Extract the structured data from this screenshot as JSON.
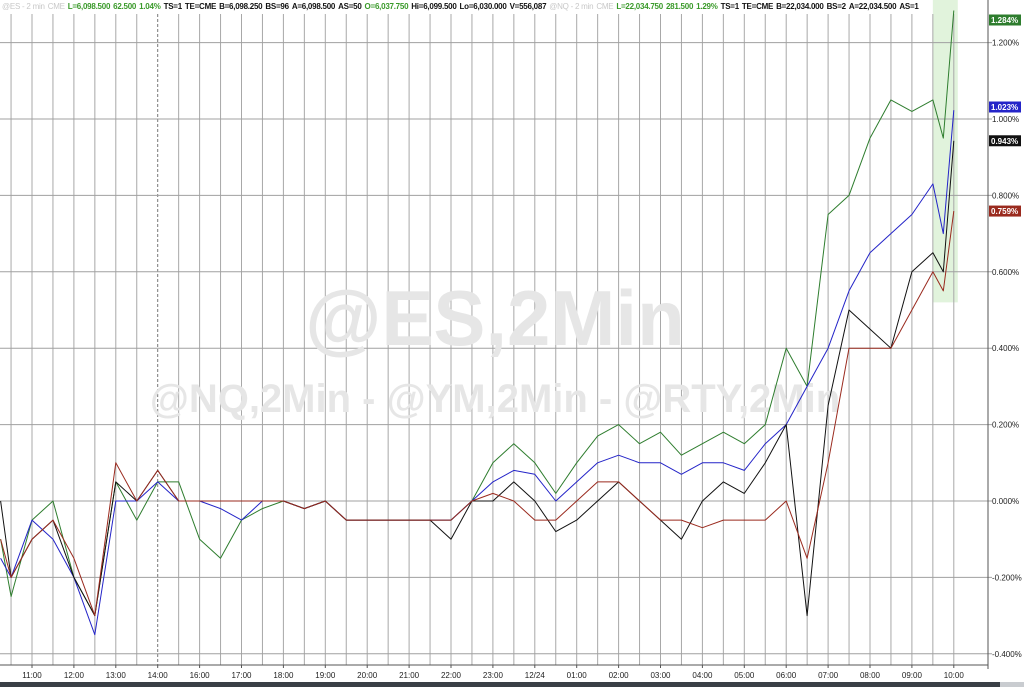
{
  "header": {
    "es_symbol": "@ES - 2 min",
    "es_exchange": "CME",
    "es_last": "L=6,098.500",
    "es_change": "62.500",
    "es_pct": "1.04%",
    "es_ts": "TS=1",
    "es_te": "TE=CME",
    "es_bid": "B=6,098.250",
    "es_bs": "BS=96",
    "es_ask": "A=6,098.500",
    "es_as": "AS=50",
    "es_open": "O=6,037.750",
    "es_high": "Hi=6,099.500",
    "es_low": "Lo=6,030.000",
    "es_vol": "V=556,087",
    "nq_symbol": "@NQ - 2 min",
    "nq_exchange": "CME",
    "nq_last": "L=22,034.750",
    "nq_change": "281.500",
    "nq_pct": "1.29%",
    "nq_ts": "TS=1",
    "nq_te": "TE=CME",
    "nq_bid": "B=22,034.000",
    "nq_bs": "BS=2",
    "nq_ask": "A=22,034.500",
    "nq_as": "AS=1"
  },
  "watermark": {
    "main": "@ES,2Min",
    "sub": "@NQ,2Min - @YM,2Min - @RTY,2Min"
  },
  "chart_data": {
    "type": "line",
    "ylim": [
      -0.42,
      1.32
    ],
    "yticks": [
      -0.4,
      -0.2,
      0.0,
      0.2,
      0.4,
      0.6,
      0.8,
      1.0,
      1.2
    ],
    "ytick_labels": [
      "-0.400%",
      "-0.200%",
      "0.000%",
      "0.200%",
      "0.400%",
      "0.600%",
      "0.800%",
      "1.000%",
      "1.200%"
    ],
    "xtick_labels": [
      "11:00",
      "12:00",
      "13:00",
      "14:00",
      "16:00",
      "17:00",
      "18:00",
      "19:00",
      "20:00",
      "21:00",
      "22:00",
      "23:00",
      "12/24",
      "01:00",
      "02:00",
      "03:00",
      "04:00",
      "05:00",
      "06:00",
      "07:00",
      "08:00",
      "09:00",
      "10:00"
    ],
    "session_break": "14:00",
    "grid": true,
    "highlight_band": {
      "from": "09:30",
      "to": "10:00",
      "ymin": 0.52,
      "color": "#d9f0d3"
    },
    "x": [
      "10:15",
      "10:30",
      "11:00",
      "11:30",
      "12:00",
      "12:30",
      "13:00",
      "13:30",
      "14:00",
      "14:30",
      "16:00",
      "16:30",
      "17:00",
      "17:30",
      "18:00",
      "18:30",
      "19:00",
      "19:30",
      "20:00",
      "20:30",
      "21:00",
      "21:30",
      "22:00",
      "22:30",
      "23:00",
      "23:30",
      "00:00",
      "00:30",
      "01:00",
      "01:30",
      "02:00",
      "02:30",
      "03:00",
      "03:30",
      "04:00",
      "04:30",
      "05:00",
      "05:30",
      "06:00",
      "06:30",
      "07:00",
      "07:30",
      "08:00",
      "08:30",
      "09:00",
      "09:30",
      "09:45",
      "10:00"
    ],
    "series": [
      {
        "color": "#2e7d2e",
        "last_label": "1.284%",
        "values": [
          -0.1,
          -0.25,
          -0.05,
          0.0,
          -0.2,
          -0.3,
          0.05,
          -0.05,
          0.05,
          0.05,
          -0.1,
          -0.15,
          -0.05,
          -0.02,
          0.0,
          -0.02,
          0.0,
          -0.05,
          -0.05,
          -0.05,
          -0.05,
          -0.05,
          -0.05,
          0.0,
          0.1,
          0.15,
          0.1,
          0.02,
          0.1,
          0.17,
          0.2,
          0.15,
          0.18,
          0.12,
          0.15,
          0.18,
          0.15,
          0.2,
          0.4,
          0.3,
          0.75,
          0.8,
          0.95,
          1.05,
          1.02,
          1.05,
          0.95,
          1.284
        ]
      },
      {
        "color": "#2424c8",
        "last_label": "1.023%",
        "values": [
          -0.15,
          -0.2,
          -0.05,
          -0.1,
          -0.2,
          -0.35,
          0.0,
          0.0,
          0.05,
          0.0,
          0.0,
          -0.02,
          -0.05,
          0.0,
          0.0,
          -0.02,
          0.0,
          -0.05,
          -0.05,
          -0.05,
          -0.05,
          -0.05,
          -0.05,
          0.0,
          0.05,
          0.08,
          0.07,
          0.0,
          0.05,
          0.1,
          0.12,
          0.1,
          0.1,
          0.07,
          0.1,
          0.1,
          0.08,
          0.15,
          0.2,
          0.3,
          0.4,
          0.55,
          0.65,
          0.7,
          0.75,
          0.83,
          0.7,
          1.023
        ]
      },
      {
        "color": "#111111",
        "last_label": "0.943%",
        "values": [
          0.0,
          -0.2,
          -0.1,
          -0.05,
          -0.2,
          -0.3,
          0.05,
          0.0,
          0.08,
          0.0,
          0.0,
          0.0,
          0.0,
          0.0,
          0.0,
          -0.02,
          0.0,
          -0.05,
          -0.05,
          -0.05,
          -0.05,
          -0.05,
          -0.1,
          0.0,
          0.0,
          0.05,
          0.0,
          -0.08,
          -0.05,
          0.0,
          0.05,
          0.0,
          -0.05,
          -0.1,
          0.0,
          0.05,
          0.02,
          0.1,
          0.2,
          -0.3,
          0.25,
          0.5,
          0.45,
          0.4,
          0.6,
          0.65,
          0.6,
          0.943
        ]
      },
      {
        "color": "#9a2a1e",
        "last_label": "0.759%",
        "values": [
          -0.1,
          -0.2,
          -0.1,
          -0.05,
          -0.15,
          -0.3,
          0.1,
          0.0,
          0.08,
          0.0,
          0.0,
          0.0,
          0.0,
          0.0,
          0.0,
          -0.02,
          0.0,
          -0.05,
          -0.05,
          -0.05,
          -0.05,
          -0.05,
          -0.05,
          0.0,
          0.02,
          0.0,
          -0.05,
          -0.05,
          0.0,
          0.05,
          0.05,
          0.0,
          -0.05,
          -0.05,
          -0.07,
          -0.05,
          -0.05,
          -0.05,
          0.0,
          -0.15,
          0.1,
          0.4,
          0.4,
          0.4,
          0.5,
          0.6,
          0.55,
          0.759
        ]
      }
    ]
  }
}
